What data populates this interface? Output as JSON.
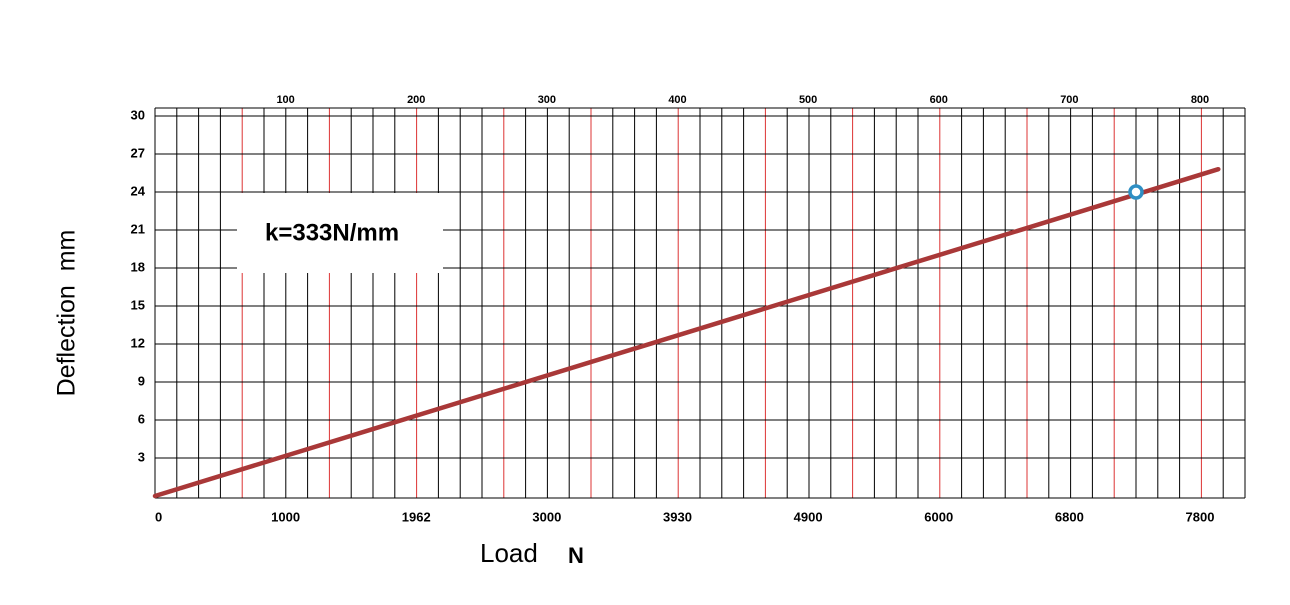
{
  "chart_data": {
    "type": "line",
    "ylabel": "Deflection  mm",
    "xlabel": "Load",
    "xlabel_unit": "N",
    "annotation": "k=333N/mm",
    "xticks": [
      0,
      1000,
      1962,
      3000,
      3930,
      4900,
      6000,
      6800,
      7800
    ],
    "x2ticks": [
      100,
      200,
      300,
      400,
      500,
      600,
      700,
      800
    ],
    "ylim": [
      0,
      30
    ],
    "yticks": [
      3,
      6,
      9,
      12,
      15,
      18,
      21,
      24,
      27,
      30
    ],
    "grid": true,
    "series": [
      {
        "color": "#a93838",
        "x": [
          0,
          7940
        ],
        "values": [
          0,
          25.8
        ]
      }
    ],
    "marker": {
      "color": "#2f8fc4",
      "x": 7310,
      "y": 24
    }
  }
}
